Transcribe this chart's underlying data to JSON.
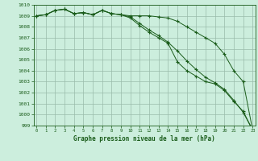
{
  "title": "Graphe pression niveau de la mer (hPa)",
  "x": [
    0,
    1,
    2,
    3,
    4,
    5,
    6,
    7,
    8,
    9,
    10,
    11,
    12,
    13,
    14,
    15,
    16,
    17,
    18,
    19,
    20,
    21,
    22,
    23
  ],
  "line1": [
    1009.0,
    1009.1,
    1009.5,
    1009.6,
    1009.2,
    1009.3,
    1009.1,
    1009.5,
    1009.2,
    1009.1,
    1009.0,
    1009.0,
    1009.0,
    1008.9,
    1008.8,
    1008.5,
    1008.0,
    1007.5,
    1007.0,
    1006.5,
    1005.5,
    1004.0,
    1003.0,
    998.6
  ],
  "line2": [
    1009.0,
    1009.1,
    1009.5,
    1009.6,
    1009.2,
    1009.3,
    1009.1,
    1009.5,
    1009.2,
    1009.1,
    1008.9,
    1008.3,
    1007.7,
    1007.2,
    1006.6,
    1005.8,
    1004.9,
    1004.1,
    1003.4,
    1002.9,
    1002.3,
    1001.3,
    1000.2,
    998.6
  ],
  "line3": [
    1009.0,
    1009.1,
    1009.5,
    1009.6,
    1009.2,
    1009.3,
    1009.1,
    1009.5,
    1009.2,
    1009.1,
    1008.8,
    1008.1,
    1007.5,
    1007.0,
    1006.5,
    1004.8,
    1004.0,
    1003.5,
    1003.0,
    1002.8,
    1002.2,
    1001.2,
    1000.3,
    998.6
  ],
  "ylim_min": 999,
  "ylim_max": 1010,
  "line_color": "#1a5c1a",
  "bg_color": "#cceedd",
  "grid_color": "#99bbaa",
  "title_color": "#1a5c1a",
  "tick_color": "#1a5c1a",
  "fig_width": 3.2,
  "fig_height": 2.0,
  "dpi": 100
}
